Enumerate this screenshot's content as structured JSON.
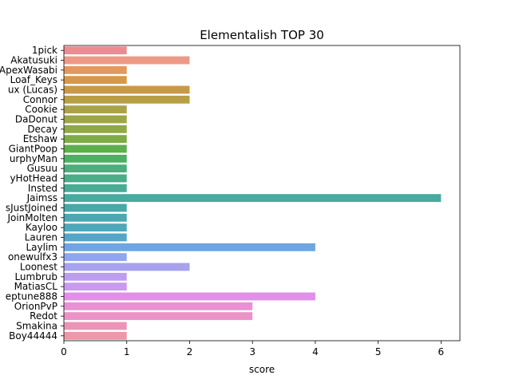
{
  "chart_data": {
    "type": "bar",
    "orientation": "horizontal",
    "title": "Elementalish TOP 30",
    "xlabel": "score",
    "ylabel": "",
    "xlim": [
      0,
      6.3
    ],
    "xticks": [
      0,
      1,
      2,
      3,
      4,
      5,
      6
    ],
    "grid": false,
    "legend": "none",
    "categories": [
      "1pick",
      "Akatusuki",
      "ApexWasabi",
      "Loaf_Keys",
      "ux (Lucas)",
      "Connor",
      "Cookie",
      "DaDonut",
      "Decay",
      "Etshaw",
      "GiantPoop",
      "urphyMan",
      "Gusuu",
      "yHotHead",
      "Insted",
      "Jaimss",
      "sJustJoined",
      "JoinMolten",
      "Kayloo",
      "Lauren",
      "Laylim",
      "onewulfx3",
      "Loonest",
      "Lumbrub",
      "MatiasCL",
      "eptune888",
      "OrionPvP",
      "Redot",
      "Smakina",
      "Boy44444"
    ],
    "values": [
      1,
      2,
      1,
      1,
      2,
      2,
      1,
      1,
      1,
      1,
      1,
      1,
      1,
      1,
      1,
      6,
      1,
      1,
      1,
      1,
      4,
      1,
      2,
      1,
      1,
      4,
      3,
      3,
      1,
      1
    ],
    "colors": [
      "#ee8a91",
      "#ec9a86",
      "#e4985f",
      "#d6984a",
      "#c89a48",
      "#b89e47",
      "#a9a247",
      "#9ea547",
      "#90a847",
      "#7dac47",
      "#5cb04b",
      "#4bb060",
      "#4bae7c",
      "#4aad8a",
      "#49ab94",
      "#49aa9f",
      "#48a9a9",
      "#4aa8b1",
      "#4ea7ba",
      "#55a5c6",
      "#6ea6e4",
      "#8fa5ee",
      "#a6a2ee",
      "#bd9df0",
      "#c99af0",
      "#e28eea",
      "#e991d4",
      "#ea93c7",
      "#ea95b8",
      "#ec97aa"
    ]
  }
}
